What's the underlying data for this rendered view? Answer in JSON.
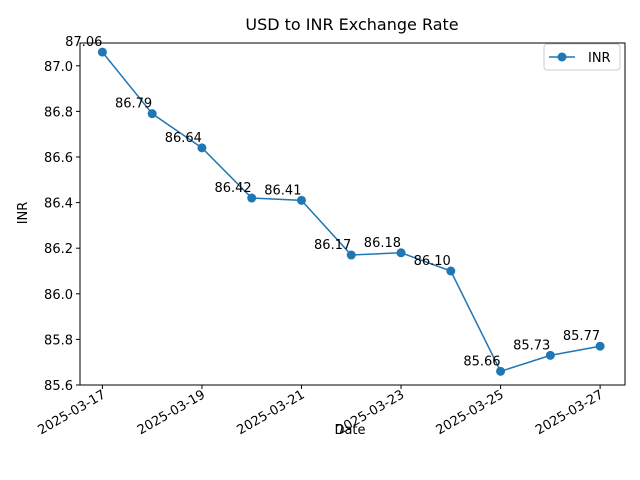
{
  "chart_data": {
    "type": "line",
    "title": "USD to INR Exchange Rate",
    "xlabel": "Date",
    "ylabel": "INR",
    "x": [
      "2025-03-17",
      "2025-03-18",
      "2025-03-19",
      "2025-03-20",
      "2025-03-21",
      "2025-03-22",
      "2025-03-23",
      "2025-03-24",
      "2025-03-25",
      "2025-03-26",
      "2025-03-27"
    ],
    "series": [
      {
        "name": "INR",
        "values": [
          87.06,
          86.79,
          86.64,
          86.42,
          86.41,
          86.17,
          86.18,
          86.1,
          85.66,
          85.73,
          85.77
        ],
        "labels": [
          "87.06",
          "86.79",
          "86.64",
          "86.42",
          "86.41",
          "86.17",
          "86.18",
          "86.10",
          "85.66",
          "85.73",
          "85.77"
        ],
        "color": "#1f77b4"
      }
    ],
    "x_ticks": [
      "2025-03-17",
      "2025-03-19",
      "2025-03-21",
      "2025-03-23",
      "2025-03-25",
      "2025-03-27"
    ],
    "y_ticks": [
      "85.6",
      "85.8",
      "86.0",
      "86.2",
      "86.4",
      "86.6",
      "86.8",
      "87.0"
    ],
    "ylim": [
      85.6,
      87.1
    ],
    "grid": false,
    "legend": "upper right"
  }
}
